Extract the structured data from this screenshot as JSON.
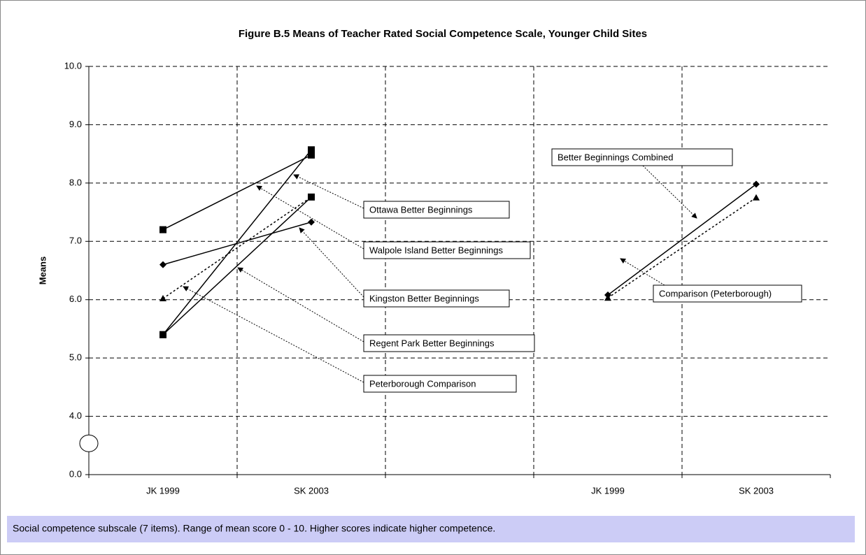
{
  "chart_data": {
    "type": "line",
    "title": "Figure B.5  Means of Teacher Rated Social Competence Scale, Younger Child Sites",
    "y_label": "Means",
    "note": "Social competence subscale (7 items). Range of mean score 0 - 10. Higher scores indicate higher competence.",
    "categories": [
      "JK 1999",
      "SK 2003",
      null,
      "JK 1999",
      "SK 2003"
    ],
    "ylim": [
      0,
      10
    ],
    "axis_break": [
      0,
      4
    ],
    "yticks": [
      {
        "value": 0,
        "label": "0.0"
      },
      {
        "value": 4,
        "label": "4.0"
      },
      {
        "value": 5,
        "label": "5.0"
      },
      {
        "value": 6,
        "label": "6.0"
      },
      {
        "value": 7,
        "label": "7.0"
      },
      {
        "value": 8,
        "label": "8.0"
      },
      {
        "value": 9,
        "label": "9.0"
      },
      {
        "value": 10,
        "label": "10.0"
      }
    ],
    "grid": true,
    "series": [
      {
        "name": "Ottawa Better Beginnings",
        "color": "#000000",
        "marker": "square",
        "dashed": false,
        "values": [
          5.4,
          8.57,
          null,
          null,
          null
        ]
      },
      {
        "name": "Walpole Island Better Beginnings",
        "color": "#000000",
        "marker": "square",
        "dashed": false,
        "values": [
          7.2,
          8.48,
          null,
          null,
          null
        ]
      },
      {
        "name": "Kingston Better Beginnings",
        "color": "#000000",
        "marker": "diamond",
        "dashed": false,
        "values": [
          6.6,
          7.33,
          null,
          null,
          null
        ]
      },
      {
        "name": "Regent Park Better Beginnings",
        "color": "#000000",
        "marker": "square",
        "dashed": false,
        "values": [
          5.4,
          7.76,
          null,
          null,
          null
        ]
      },
      {
        "name": "Peterborough Comparison",
        "color": "#000000",
        "marker": "triangle",
        "dashed": true,
        "values": [
          6.02,
          7.76,
          null,
          null,
          null
        ]
      },
      {
        "name": "Better Beginnings Combined",
        "color": "#000000",
        "marker": "diamond",
        "dashed": false,
        "values": [
          null,
          null,
          null,
          6.08,
          7.98
        ]
      },
      {
        "name": "Comparison (Peterborough)",
        "color": "#000000",
        "marker": "triangle",
        "dashed": true,
        "values": [
          null,
          null,
          null,
          6.03,
          7.75
        ]
      }
    ]
  }
}
